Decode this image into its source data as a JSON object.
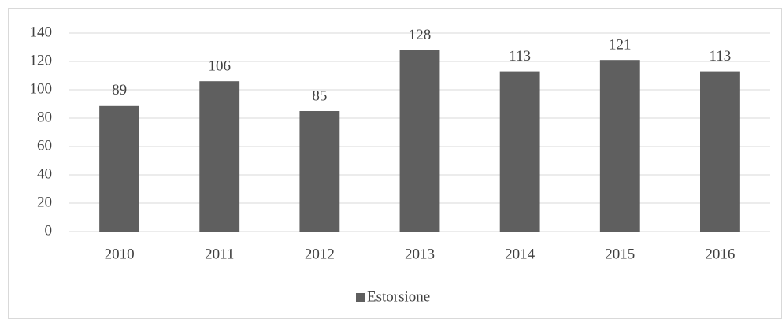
{
  "chart_data": {
    "type": "bar",
    "categories": [
      "2010",
      "2011",
      "2012",
      "2013",
      "2014",
      "2015",
      "2016"
    ],
    "series": [
      {
        "name": "Estorsione",
        "color": "#5f5f5f",
        "values": [
          89,
          106,
          85,
          128,
          113,
          121,
          113
        ]
      }
    ],
    "ylim": [
      0,
      140
    ],
    "yticks": [
      0,
      20,
      40,
      60,
      80,
      100,
      120,
      140
    ],
    "grid": true,
    "legend": "bottom"
  }
}
